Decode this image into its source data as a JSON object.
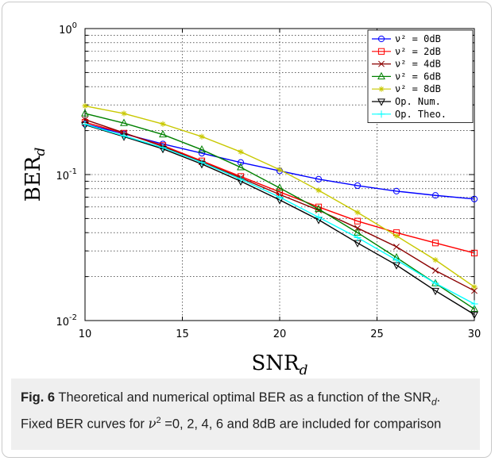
{
  "chart_data": {
    "type": "line",
    "title": "",
    "xlabel": "SNR",
    "xlabel_sub": "d",
    "ylabel": "BER",
    "ylabel_sub": "d",
    "xlim": [
      10,
      30
    ],
    "ylim": [
      0.01,
      1
    ],
    "yscale": "log",
    "grid": true,
    "legend_position": "top-right",
    "x_ticks": [
      "10",
      "15",
      "20",
      "25",
      "30"
    ],
    "y_ticks": [
      {
        "base": "10",
        "exp": "0"
      },
      {
        "base": "10",
        "exp": "-1"
      },
      {
        "base": "10",
        "exp": "-2"
      }
    ],
    "x": [
      10,
      12,
      14,
      16,
      18,
      20,
      22,
      24,
      26,
      28,
      30
    ],
    "series": [
      {
        "name": "ν² = 0dB",
        "color": "#0000ff",
        "marker": "circle",
        "values": [
          0.222,
          0.19,
          0.162,
          0.14,
          0.121,
          0.106,
          0.093,
          0.084,
          0.077,
          0.072,
          0.068
        ]
      },
      {
        "name": "ν² = 2dB",
        "color": "#ff0000",
        "marker": "square",
        "values": [
          0.228,
          0.192,
          0.158,
          0.124,
          0.097,
          0.076,
          0.06,
          0.048,
          0.04,
          0.034,
          0.029
        ]
      },
      {
        "name": "ν² = 4dB",
        "color": "#8b0000",
        "marker": "x",
        "values": [
          0.238,
          0.193,
          0.156,
          0.122,
          0.095,
          0.073,
          0.057,
          0.043,
          0.032,
          0.022,
          0.016
        ]
      },
      {
        "name": "ν² = 6dB",
        "color": "#008000",
        "marker": "triangle-up",
        "values": [
          0.262,
          0.225,
          0.188,
          0.148,
          0.112,
          0.081,
          0.058,
          0.04,
          0.027,
          0.018,
          0.012
        ]
      },
      {
        "name": "ν² = 8dB",
        "color": "#c8c800",
        "marker": "star",
        "values": [
          0.295,
          0.262,
          0.222,
          0.182,
          0.143,
          0.108,
          0.078,
          0.055,
          0.038,
          0.026,
          0.017
        ]
      },
      {
        "name": "Op. Num.",
        "color": "#000000",
        "marker": "triangle-down",
        "values": [
          0.219,
          0.182,
          0.15,
          0.118,
          0.09,
          0.067,
          0.049,
          0.034,
          0.024,
          0.016,
          0.011
        ]
      },
      {
        "name": "Op. Theo.",
        "color": "#00ffff",
        "marker": "plus",
        "values": [
          0.221,
          0.184,
          0.153,
          0.121,
          0.093,
          0.07,
          0.051,
          0.037,
          0.026,
          0.018,
          0.013
        ]
      }
    ]
  },
  "caption": {
    "label": "Fig. 6",
    "text_1": " Theoretical and numerical optimal BER as a function of the SNR",
    "sub": "d",
    "text_2": ". Fixed BER curves for ",
    "nu": "ν",
    "sup": "2",
    "text_3": " =0, 2, 4, 6 and 8dB are included for comparison"
  }
}
